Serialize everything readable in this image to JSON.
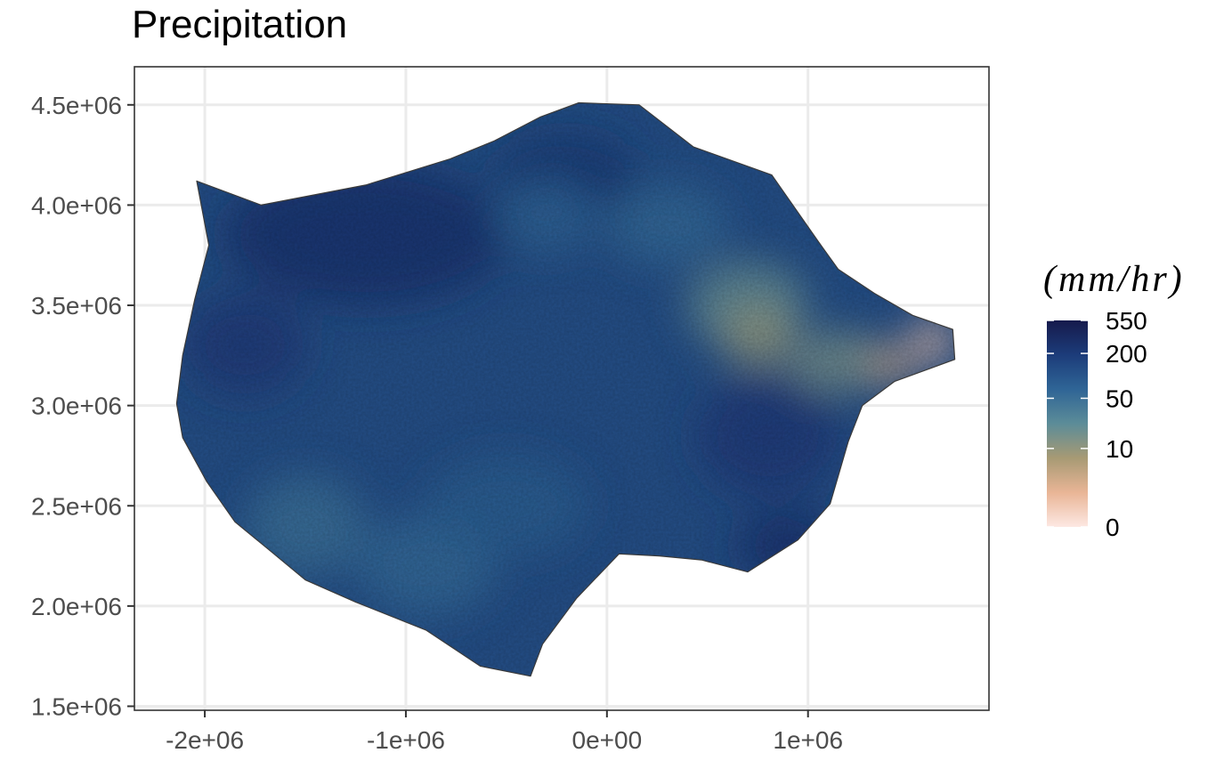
{
  "chart_data": {
    "type": "heatmap",
    "title": "Precipitation",
    "xlabel": "",
    "ylabel": "",
    "xlim": [
      -2350000,
      1900000
    ],
    "ylim": [
      1480000,
      4690000
    ],
    "x_ticks": [
      {
        "value": -2000000,
        "label": "-2e+06"
      },
      {
        "value": -1000000,
        "label": "-1e+06"
      },
      {
        "value": 0,
        "label": "0e+00"
      },
      {
        "value": 1000000,
        "label": "1e+06"
      }
    ],
    "y_ticks": [
      {
        "value": 1500000,
        "label": "1.5e+06"
      },
      {
        "value": 2000000,
        "label": "2.0e+06"
      },
      {
        "value": 2500000,
        "label": "2.5e+06"
      },
      {
        "value": 3000000,
        "label": "3.0e+06"
      },
      {
        "value": 3500000,
        "label": "3.5e+06"
      },
      {
        "value": 4000000,
        "label": "4.0e+06"
      },
      {
        "value": 4500000,
        "label": "4.5e+06"
      }
    ],
    "grid": true,
    "legend": {
      "title": "(mm/hr)",
      "placement": "right",
      "breaks": [
        {
          "value": 550,
          "label": "550"
        },
        {
          "value": 200,
          "label": "200"
        },
        {
          "value": 50,
          "label": "50"
        },
        {
          "value": 10,
          "label": "10"
        },
        {
          "value": 0,
          "label": "0"
        }
      ],
      "colors": [
        "#fde8e3",
        "#e9b596",
        "#a79a74",
        "#5c8c98",
        "#2f6596",
        "#1c3c7a",
        "#161a4c"
      ]
    },
    "region_outline": [
      [
        -2040000,
        4120000
      ],
      [
        -1720000,
        4000000
      ],
      [
        -1200000,
        4100000
      ],
      [
        -780000,
        4230000
      ],
      [
        -560000,
        4320000
      ],
      [
        -330000,
        4440000
      ],
      [
        -140000,
        4510000
      ],
      [
        160000,
        4500000
      ],
      [
        430000,
        4290000
      ],
      [
        820000,
        4150000
      ],
      [
        1050000,
        3820000
      ],
      [
        1150000,
        3680000
      ],
      [
        1330000,
        3560000
      ],
      [
        1520000,
        3450000
      ],
      [
        1720000,
        3380000
      ],
      [
        1730000,
        3230000
      ],
      [
        1430000,
        3120000
      ],
      [
        1270000,
        3000000
      ],
      [
        1200000,
        2820000
      ],
      [
        1110000,
        2510000
      ],
      [
        950000,
        2330000
      ],
      [
        700000,
        2170000
      ],
      [
        470000,
        2230000
      ],
      [
        260000,
        2250000
      ],
      [
        60000,
        2260000
      ],
      [
        -150000,
        2040000
      ],
      [
        -320000,
        1810000
      ],
      [
        -380000,
        1650000
      ],
      [
        -630000,
        1700000
      ],
      [
        -900000,
        1880000
      ],
      [
        -1250000,
        2020000
      ],
      [
        -1500000,
        2130000
      ],
      [
        -1680000,
        2280000
      ],
      [
        -1850000,
        2420000
      ],
      [
        -1990000,
        2620000
      ],
      [
        -2110000,
        2840000
      ],
      [
        -2140000,
        3010000
      ],
      [
        -2110000,
        3250000
      ],
      [
        -2050000,
        3530000
      ],
      [
        -1980000,
        3800000
      ]
    ],
    "precip_blobs": [
      {
        "x": -1200000,
        "y": 3850000,
        "rx": 700000,
        "ry": 350000,
        "value": 250
      },
      {
        "x": -1800000,
        "y": 3300000,
        "rx": 300000,
        "ry": 250000,
        "value": 200
      },
      {
        "x": -200000,
        "y": 4150000,
        "rx": 350000,
        "ry": 200000,
        "value": 220
      },
      {
        "x": 300000,
        "y": 3900000,
        "rx": 300000,
        "ry": 200000,
        "value": 60
      },
      {
        "x": -300000,
        "y": 3950000,
        "rx": 250000,
        "ry": 180000,
        "value": 70
      },
      {
        "x": -1500000,
        "y": 2400000,
        "rx": 300000,
        "ry": 250000,
        "value": 50
      },
      {
        "x": -900000,
        "y": 2200000,
        "rx": 350000,
        "ry": 250000,
        "value": 60
      },
      {
        "x": -500000,
        "y": 2500000,
        "rx": 400000,
        "ry": 250000,
        "value": 80
      },
      {
        "x": 900000,
        "y": 2300000,
        "rx": 250000,
        "ry": 180000,
        "value": 250
      },
      {
        "x": 800000,
        "y": 2850000,
        "rx": 350000,
        "ry": 300000,
        "value": 200
      },
      {
        "x": 700000,
        "y": 3500000,
        "rx": 300000,
        "ry": 220000,
        "value": 20
      },
      {
        "x": 750000,
        "y": 3350000,
        "rx": 180000,
        "ry": 150000,
        "value": 10
      },
      {
        "x": 1150000,
        "y": 3220000,
        "rx": 250000,
        "ry": 150000,
        "value": 15
      },
      {
        "x": 1420000,
        "y": 3200000,
        "rx": 110000,
        "ry": 90000,
        "value": 3
      },
      {
        "x": 1620000,
        "y": 3320000,
        "rx": 110000,
        "ry": 110000,
        "value": 1
      }
    ]
  }
}
